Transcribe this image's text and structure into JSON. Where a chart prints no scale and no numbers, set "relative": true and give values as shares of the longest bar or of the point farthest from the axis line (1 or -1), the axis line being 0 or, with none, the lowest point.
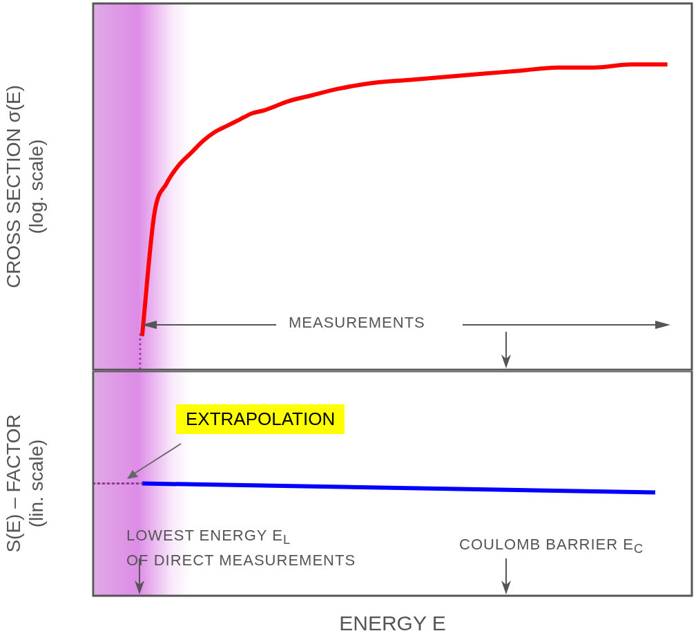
{
  "chart_data": [
    {
      "type": "line",
      "ylabel": "CROSS SECTION σ(E)\n(log. scale)",
      "relative": true,
      "annotations": [
        "MEASUREMENTS"
      ],
      "categories": [
        null,
        null,
        null,
        null,
        null,
        null,
        null,
        null,
        null,
        null,
        null,
        null,
        null,
        null,
        null,
        null,
        null,
        null,
        null,
        null,
        null,
        null,
        null,
        null,
        null,
        null,
        null,
        null,
        null,
        null,
        null,
        null,
        null,
        null,
        null,
        null,
        null,
        null,
        null,
        null,
        null,
        null,
        null,
        null,
        null,
        null,
        null,
        null,
        null,
        null
      ],
      "series": [
        {
          "color": "#ff0000",
          "values": [
            null,
            null,
            null,
            null,
            0.11,
            0.51,
            0.61,
            0.67,
            0.71,
            0.75,
            0.78,
            0.8,
            0.82,
            0.84,
            0.85,
            null,
            0.88,
            null,
            0.9,
            null,
            0.92,
            null,
            null,
            0.94,
            null,
            null,
            0.95,
            null,
            null,
            0.96,
            null,
            null,
            0.97,
            null,
            null,
            0.98,
            null,
            null,
            0.99,
            null,
            null,
            0.99,
            null,
            null,
            1.0,
            null,
            null,
            1.0,
            null,
            null
          ]
        }
      ]
    },
    {
      "type": "line",
      "ylabel": "S(E) – FACTOR\n(lin. scale)",
      "xlabel": "ENERGY E",
      "relative": true,
      "annotations": [
        "EXTRAPOLATION",
        "LOWEST ENERGY E$_{L}$\nOF DIRECT MEASUREMENTS",
        "COULOMB BARRIER E$_{C}$"
      ],
      "categories": [
        null,
        null,
        null,
        null,
        null,
        null,
        null,
        null,
        null,
        null,
        null,
        null,
        null,
        null,
        null,
        null,
        null,
        null,
        null,
        null,
        null,
        null,
        null,
        null,
        null,
        null,
        null,
        null,
        null,
        null,
        null,
        null,
        null,
        null,
        null,
        null,
        null,
        null,
        null,
        null,
        null,
        null,
        null,
        null,
        null,
        null,
        null,
        null,
        null,
        null
      ],
      "series": [
        {
          "color": "#8b3a8f",
          "line_style": "dotted",
          "values": [
            1.0,
            null,
            null,
            null,
            1.0,
            null,
            null,
            null,
            null,
            null,
            null,
            null,
            null,
            null,
            null,
            null,
            null,
            null,
            null,
            null,
            null,
            null,
            null,
            null,
            null,
            null,
            null,
            null,
            null,
            null,
            null,
            null,
            null,
            null,
            null,
            null,
            null,
            null,
            null,
            null,
            null,
            null,
            null,
            null,
            null,
            null,
            null,
            null,
            null,
            null
          ]
        },
        {
          "color": "#0000ff",
          "values": [
            null,
            null,
            null,
            null,
            1.0,
            null,
            null,
            null,
            null,
            null,
            null,
            null,
            null,
            null,
            null,
            null,
            null,
            null,
            null,
            null,
            null,
            null,
            null,
            null,
            null,
            null,
            null,
            null,
            null,
            null,
            null,
            null,
            null,
            null,
            null,
            null,
            null,
            null,
            null,
            null,
            null,
            null,
            null,
            null,
            null,
            null,
            0.92,
            null,
            null,
            null
          ]
        }
      ]
    }
  ]
}
